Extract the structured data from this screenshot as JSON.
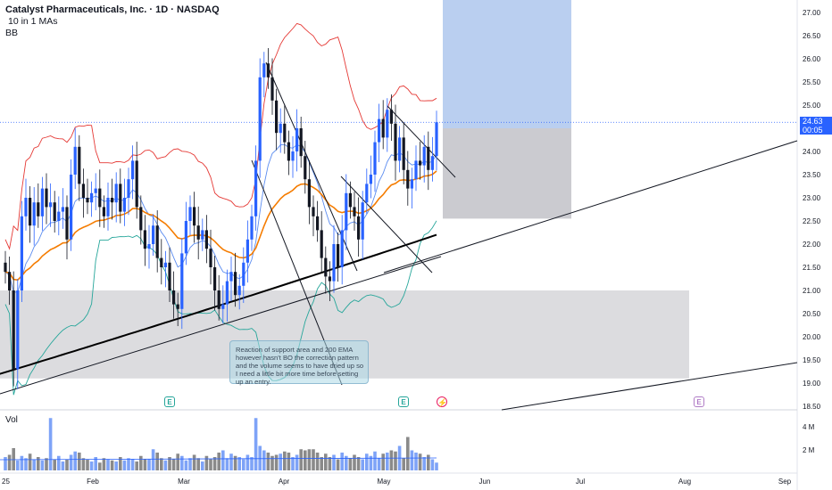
{
  "legend": {
    "title": "Catalyst Pharmaceuticals, Inc. · 1D · NASDAQ",
    "ma": "10 in 1 MAs",
    "bb": "BB"
  },
  "volume_label": "Vol",
  "price_tag": {
    "price": "24.63",
    "countdown": "00:05"
  },
  "annotation": "Reaction of support area and 200 EMA however hasn't BO the correction pattern and the volume seems to have dried up so I need a little bit more time before setting up an entry.",
  "events": {
    "earnings": "E",
    "dividend": "⚡"
  },
  "colors": {
    "up": "#2962ff",
    "down": "#131722",
    "bb": "#e53935",
    "bb_lower": "#26a69a",
    "ema_fast": "#5b8cf0",
    "ema_mid": "#f57c00",
    "ema_slow": "#000000",
    "vol_up": "#7ea3f7",
    "vol_down": "#8a8a8a"
  },
  "chart_data": {
    "type": "candlestick",
    "title": "Catalyst Pharmaceuticals, Inc. · 1D · NASDAQ",
    "y_axis_ticks": [
      "27.00",
      "26.50",
      "26.00",
      "25.50",
      "25.00",
      "24.50",
      "24.00",
      "23.50",
      "23.00",
      "22.50",
      "22.00",
      "21.50",
      "21.00",
      "20.50",
      "20.00",
      "19.50",
      "19.00",
      "18.50"
    ],
    "y_range": [
      18.5,
      27.0
    ],
    "x_axis_ticks": [
      "25",
      "Feb",
      "Mar",
      "Apr",
      "May",
      "Jun",
      "Jul",
      "Aug",
      "Sep"
    ],
    "volume_ticks": [
      "4 M",
      "2 M"
    ],
    "last_price": 24.63,
    "close_series": [
      21.4,
      21.0,
      19.3,
      21.0,
      22.6,
      23.0,
      22.4,
      22.9,
      22.6,
      23.2,
      22.8,
      22.9,
      22.5,
      22.7,
      22.8,
      22.1,
      23.5,
      24.1,
      23.3,
      23.0,
      22.9,
      23.1,
      23.2,
      22.8,
      22.6,
      23.0,
      22.9,
      23.3,
      22.7,
      23.0,
      23.4,
      23.8,
      22.8,
      22.3,
      21.9,
      22.0,
      22.4,
      21.7,
      21.5,
      21.6,
      21.0,
      20.7,
      20.6,
      21.8,
      22.5,
      22.8,
      22.4,
      22.1,
      22.3,
      21.9,
      21.5,
      21.0,
      20.6,
      20.7,
      21.2,
      21.4,
      20.9,
      21.1,
      21.6,
      22.1,
      22.6,
      23.8,
      25.6,
      25.9,
      25.6,
      25.1,
      24.4,
      24.6,
      24.2,
      23.8,
      24.0,
      24.5,
      23.9,
      23.4,
      22.8,
      22.6,
      22.3,
      21.7,
      21.3,
      21.2,
      22.0,
      21.5,
      22.3,
      23.1,
      22.8,
      22.6,
      22.1,
      22.9,
      23.3,
      23.5,
      24.2,
      24.7,
      24.3,
      24.9,
      24.6,
      23.8,
      24.3,
      23.6,
      23.2,
      23.4,
      23.8,
      23.7,
      24.1,
      23.6,
      23.9,
      24.63
    ],
    "volume_series": [
      1.2,
      1.4,
      2.0,
      0.9,
      1.3,
      1.1,
      1.5,
      1.0,
      1.2,
      0.9,
      1.1,
      4.7,
      1.0,
      1.3,
      0.8,
      1.0,
      1.4,
      1.7,
      1.6,
      1.1,
      1.0,
      0.8,
      1.2,
      0.7,
      1.1,
      1.0,
      0.9,
      0.8,
      1.2,
      0.9,
      1.1,
      1.0,
      0.8,
      1.3,
      1.0,
      1.0,
      1.9,
      1.6,
      1.1,
      0.9,
      1.2,
      1.0,
      1.5,
      1.3,
      0.9,
      1.1,
      1.4,
      1.1,
      0.8,
      1.3,
      1.0,
      1.2,
      1.6,
      1.8,
      1.1,
      1.5,
      1.3,
      1.2,
      1.0,
      1.4,
      1.2,
      4.7,
      2.2,
      1.8,
      1.6,
      1.3,
      1.4,
      1.5,
      1.7,
      1.6,
      1.2,
      1.4,
      1.9,
      1.8,
      1.9,
      1.9,
      1.6,
      1.2,
      1.5,
      1.2,
      1.4,
      1.0,
      1.6,
      1.3,
      1.1,
      1.4,
      1.2,
      1.0,
      1.5,
      1.3,
      1.7,
      1.1,
      1.5,
      1.6,
      1.8,
      1.7,
      2.2,
      1.1,
      3.0,
      1.8,
      1.6,
      1.5,
      1.2,
      1.4,
      1.0,
      0.7
    ],
    "support_zone": [
      19.1,
      21.0
    ],
    "target_zone": [
      24.5,
      27.0
    ],
    "stop_zone": [
      22.55,
      24.5
    ]
  }
}
